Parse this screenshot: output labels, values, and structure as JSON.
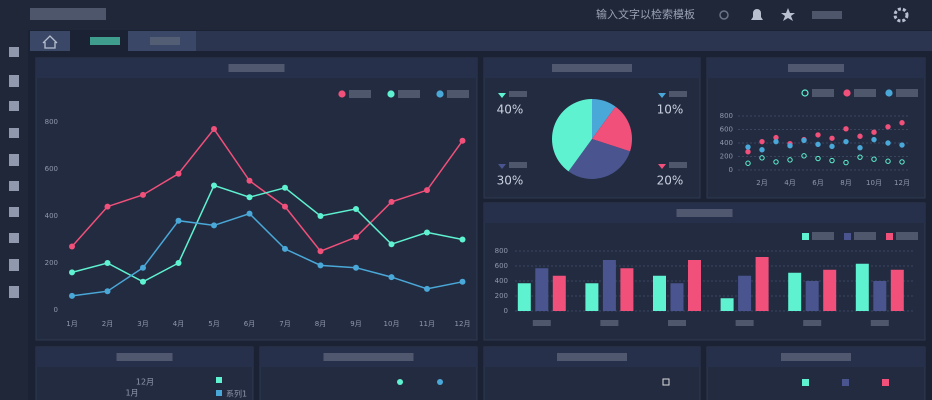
{
  "header": {
    "search_placeholder": "输入文字以检索模板"
  },
  "bottom_labels": [
    "12月",
    "1月",
    "系列1"
  ],
  "chart_data": [
    {
      "type": "line",
      "categories": [
        "1月",
        "2月",
        "3月",
        "4月",
        "5月",
        "6月",
        "7月",
        "8月",
        "9月",
        "10月",
        "11月",
        "12月"
      ],
      "series": [
        {
          "color": "#f0507a",
          "values": [
            270,
            440,
            490,
            580,
            770,
            550,
            440,
            250,
            310,
            460,
            510,
            720
          ]
        },
        {
          "color": "#5ef2d0",
          "values": [
            160,
            200,
            120,
            200,
            530,
            480,
            520,
            400,
            430,
            280,
            330,
            300
          ]
        },
        {
          "color": "#4aa8d8",
          "values": [
            60,
            80,
            180,
            380,
            360,
            410,
            260,
            190,
            180,
            140,
            90,
            120
          ]
        }
      ],
      "ylim": [
        0,
        800
      ],
      "yticks": [
        0,
        200,
        400,
        600,
        800
      ],
      "grid": false
    },
    {
      "type": "pie",
      "categories": [
        null,
        null,
        null,
        null
      ],
      "values": [
        10,
        20,
        30,
        40
      ],
      "value_labels": [
        "10%",
        "20%",
        "30%",
        "40%"
      ],
      "colors": [
        "#4aa8d8",
        "#f0507a",
        "#4a5590",
        "#5ef2d0"
      ]
    },
    {
      "type": "scatter",
      "x": [
        1,
        2,
        3,
        4,
        5,
        6,
        7,
        8,
        9,
        10,
        11,
        12
      ],
      "xticks": [
        {
          "value": 2,
          "label": "2月"
        },
        {
          "value": 4,
          "label": "4月"
        },
        {
          "value": 6,
          "label": "6月"
        },
        {
          "value": 8,
          "label": "8月"
        },
        {
          "value": 10,
          "label": "10月"
        },
        {
          "value": 12,
          "label": "12月"
        }
      ],
      "xlim": [
        1,
        12
      ],
      "series": [
        {
          "color": "#5ef2d0",
          "hollow": true,
          "values": [
            100,
            180,
            120,
            150,
            210,
            170,
            140,
            110,
            190,
            160,
            130,
            120
          ]
        },
        {
          "color": "#f0507a",
          "values": [
            270,
            420,
            480,
            390,
            450,
            520,
            470,
            610,
            500,
            560,
            640,
            700
          ]
        },
        {
          "color": "#4aa8d8",
          "values": [
            340,
            300,
            420,
            360,
            440,
            380,
            350,
            420,
            330,
            450,
            400,
            370
          ]
        }
      ],
      "ylim": [
        0,
        800
      ],
      "yticks": [
        0,
        200,
        400,
        600,
        800
      ],
      "grid": true
    },
    {
      "type": "bar",
      "categories": [
        null,
        null,
        null,
        null,
        null,
        null
      ],
      "series": [
        {
          "color": "#5ef2d0",
          "values": [
            370,
            370,
            470,
            170,
            510,
            630
          ]
        },
        {
          "color": "#4a5590",
          "values": [
            570,
            680,
            370,
            470,
            400,
            400
          ]
        },
        {
          "color": "#f0507a",
          "values": [
            470,
            570,
            680,
            720,
            550,
            550
          ]
        }
      ],
      "ylim": [
        0,
        800
      ],
      "yticks": [
        0,
        200,
        400,
        600,
        800
      ],
      "grid": true
    }
  ]
}
